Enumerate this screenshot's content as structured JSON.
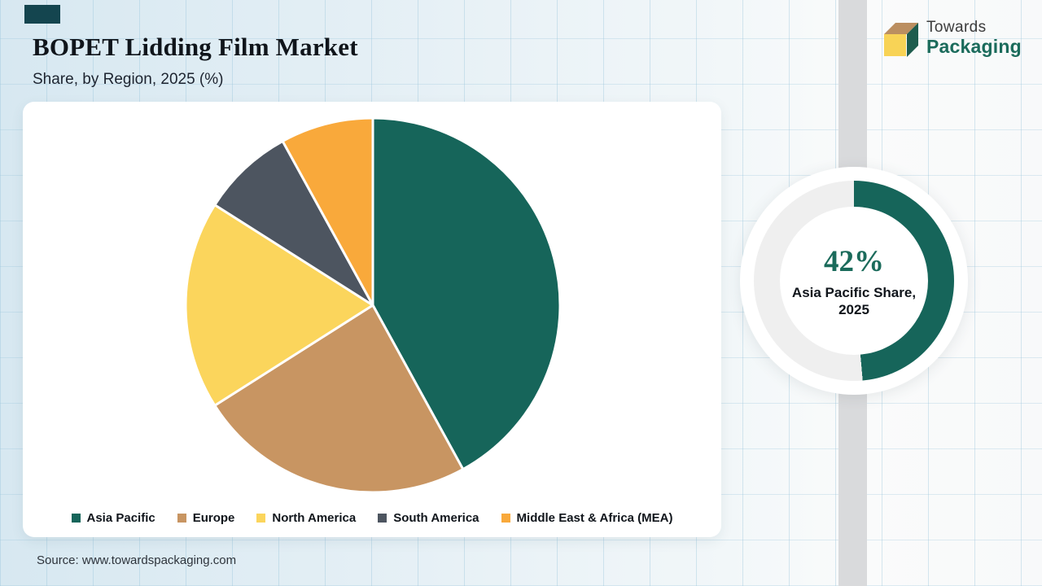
{
  "header": {
    "title": "BOPET Lidding Film Market",
    "subtitle": "Share, by Region, 2025 (%)"
  },
  "logo": {
    "line1": "Towards",
    "line2": "Packaging",
    "box_top_color": "#bb8e60",
    "box_side_color": "#1e5c4e",
    "box_front_color": "#f8d356"
  },
  "chart_data": {
    "type": "pie",
    "title": "BOPET Lidding Film Market — Share, by Region, 2025 (%)",
    "categories": [
      "Asia Pacific",
      "Europe",
      "North America",
      "South America",
      "Middle East & Africa (MEA)"
    ],
    "values": [
      42,
      24,
      18,
      8,
      8
    ],
    "colors": [
      "#16655a",
      "#c89562",
      "#fbd55c",
      "#4d5560",
      "#f9a93b"
    ],
    "start_angle_deg": 0,
    "direction": "clockwise",
    "legend_position": "bottom",
    "slice_border_color": "#ffffff"
  },
  "donut": {
    "percent": 42,
    "value_label": "42%",
    "caption_line1": "Asia Pacific Share,",
    "caption_line2": "2025",
    "arc_color": "#16655a",
    "track_color": "#efefef",
    "sweep_deg": 175
  },
  "source": "Source: www.towardspackaging.com",
  "decor": {
    "vertical_bar_color": "#d9dadc",
    "corner_square_color": "#14454f"
  }
}
